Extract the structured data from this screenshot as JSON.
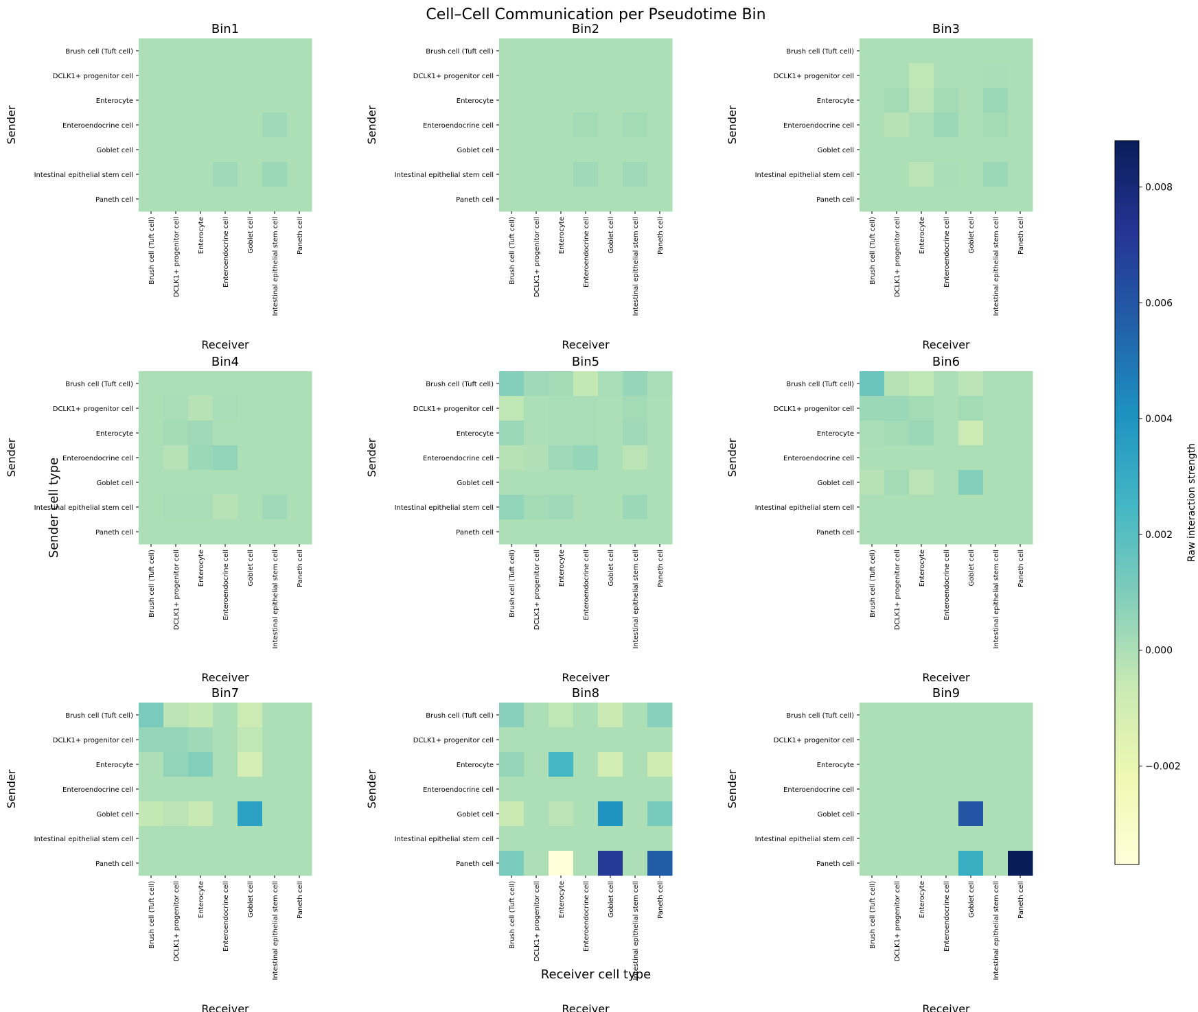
{
  "figure": {
    "title": "Cell–Cell Communication per Pseudotime Bin",
    "sup_xlabel": "Receiver cell type",
    "sup_ylabel": "Sender cell type"
  },
  "colorbar": {
    "label": "Raw interaction strength",
    "vmin": -0.0037,
    "vmax": 0.0088,
    "ticks": [
      -0.002,
      0.0,
      0.002,
      0.004,
      0.006,
      0.008
    ],
    "tick_labels": [
      "−0.002",
      "0.000",
      "0.002",
      "0.004",
      "0.006",
      "0.008"
    ],
    "colormap": "YlGnBu",
    "stops": [
      "#ffffd9",
      "#edf8b1",
      "#c7e9b4",
      "#7fcdbb",
      "#41b6c4",
      "#1d91c0",
      "#225ea8",
      "#253494",
      "#081d58"
    ]
  },
  "chart_data": {
    "type": "heatmap",
    "rows": [
      "Brush cell (Tuft cell)",
      "DCLK1+ progenitor cell",
      "Enterocyte",
      "Enteroendocrine cell",
      "Goblet cell",
      "Intestinal epithelial stem cell",
      "Paneth cell"
    ],
    "cols": [
      "Brush cell (Tuft cell)",
      "DCLK1+ progenitor cell",
      "Enterocyte",
      "Enteroendocrine cell",
      "Goblet cell",
      "Intestinal epithelial stem cell",
      "Paneth cell"
    ],
    "xlabel": "Receiver",
    "ylabel": "Sender",
    "panels": [
      {
        "title": "Bin1",
        "values": [
          [
            0,
            0,
            0,
            0,
            0,
            0,
            0
          ],
          [
            0,
            0,
            0,
            0,
            0,
            0,
            0
          ],
          [
            0,
            0,
            0,
            0,
            0,
            0,
            0
          ],
          [
            0,
            0,
            0,
            0,
            0,
            0.0003,
            0
          ],
          [
            0,
            0,
            0,
            0,
            0,
            0,
            0
          ],
          [
            0,
            0,
            0,
            0.0003,
            0,
            0.0004,
            0
          ],
          [
            0,
            0,
            0,
            0,
            0,
            0,
            0
          ]
        ]
      },
      {
        "title": "Bin2",
        "values": [
          [
            0,
            0,
            0,
            0,
            0,
            0,
            0
          ],
          [
            0,
            0,
            0,
            0,
            0,
            0,
            0
          ],
          [
            0,
            0,
            0,
            0,
            0,
            0,
            0
          ],
          [
            0,
            0,
            0,
            0.0002,
            0,
            0.0002,
            0
          ],
          [
            0,
            0,
            0,
            0,
            0,
            0,
            0
          ],
          [
            0,
            0,
            0,
            0.0003,
            0,
            0.0003,
            0
          ],
          [
            0,
            0,
            0,
            0,
            0,
            0,
            0
          ]
        ]
      },
      {
        "title": "Bin3",
        "values": [
          [
            0,
            0,
            0,
            0,
            0,
            0,
            0
          ],
          [
            0,
            0,
            -0.0004,
            0,
            0,
            0.0001,
            0
          ],
          [
            0,
            0.0002,
            -0.0003,
            0.0002,
            0,
            0.0004,
            0
          ],
          [
            0,
            -0.0002,
            0,
            0.0004,
            0,
            0.0002,
            0
          ],
          [
            0,
            0,
            0,
            0,
            0,
            0,
            0
          ],
          [
            0,
            0,
            -0.0003,
            0.0001,
            0,
            0.0004,
            0
          ],
          [
            0,
            0,
            0,
            0,
            0,
            0,
            0
          ]
        ]
      },
      {
        "title": "Bin4",
        "values": [
          [
            0,
            0,
            0,
            0,
            0,
            0,
            0
          ],
          [
            0,
            0.0001,
            -0.0002,
            0.0001,
            0,
            0,
            0
          ],
          [
            0,
            0.0002,
            0.0003,
            0,
            0,
            0,
            0
          ],
          [
            0,
            -0.0002,
            0.0004,
            0.0006,
            0,
            0,
            0
          ],
          [
            0,
            0,
            0,
            0,
            0,
            0,
            0
          ],
          [
            0,
            0.0001,
            0.0001,
            -0.0002,
            0,
            0.0003,
            0
          ],
          [
            0,
            0,
            0,
            0,
            0,
            0,
            0
          ]
        ]
      },
      {
        "title": "Bin5",
        "values": [
          [
            0.0009,
            0.0003,
            0.0002,
            -0.0005,
            0.0001,
            0.0005,
            0.0001
          ],
          [
            -0.0004,
            0,
            0.0001,
            0.0001,
            0,
            0.0002,
            0
          ],
          [
            0.0004,
            0,
            0.0001,
            0.0001,
            0,
            0.0003,
            0
          ],
          [
            -0.0002,
            -0.0001,
            0.0003,
            0.0005,
            0,
            -0.0003,
            0
          ],
          [
            0,
            0,
            0,
            0,
            0,
            0,
            0
          ],
          [
            0.0006,
            0.0002,
            0.0003,
            0,
            0,
            0.0004,
            0
          ],
          [
            0,
            0,
            0,
            0,
            0,
            0,
            0
          ]
        ]
      },
      {
        "title": "Bin6",
        "values": [
          [
            0.0015,
            -0.0002,
            -0.0004,
            0,
            -0.0003,
            0,
            0
          ],
          [
            0.0004,
            0.0004,
            0.0002,
            0,
            0.0002,
            0,
            0
          ],
          [
            0.0001,
            0.0002,
            0.0004,
            0,
            -0.0008,
            0,
            0
          ],
          [
            0,
            0,
            0,
            0,
            0,
            0,
            0
          ],
          [
            -0.0002,
            0.0002,
            -0.0003,
            0,
            0.0009,
            0,
            0
          ],
          [
            0,
            0,
            0,
            0,
            0,
            0,
            0
          ],
          [
            0,
            0,
            0,
            0,
            0,
            0,
            0
          ]
        ]
      },
      {
        "title": "Bin7",
        "values": [
          [
            0.0011,
            -0.0003,
            -0.0005,
            0,
            -0.0008,
            0,
            0
          ],
          [
            0.0005,
            0.0005,
            0.0003,
            0,
            -0.0004,
            0,
            0
          ],
          [
            0,
            0.0006,
            0.0009,
            0,
            -0.0011,
            0,
            0
          ],
          [
            0,
            0,
            0,
            0,
            0,
            0,
            0
          ],
          [
            -0.0005,
            -0.0003,
            -0.0006,
            0,
            0.0035,
            0,
            0
          ],
          [
            0,
            0,
            0,
            0,
            0,
            0,
            0
          ],
          [
            0,
            0,
            0,
            0,
            0,
            0,
            0
          ]
        ]
      },
      {
        "title": "Bin8",
        "values": [
          [
            0.0008,
            0,
            -0.0004,
            0,
            -0.0007,
            0,
            0.0008
          ],
          [
            0,
            0,
            0,
            0,
            0,
            0,
            0
          ],
          [
            0.0005,
            0,
            0.0025,
            0,
            -0.001,
            0,
            -0.0009
          ],
          [
            0,
            0,
            0,
            0,
            0,
            0,
            0
          ],
          [
            -0.0007,
            0,
            -0.0003,
            0,
            0.004,
            0,
            0.0012
          ],
          [
            0,
            0,
            0,
            0,
            0,
            0,
            0
          ],
          [
            0.0011,
            0,
            -0.0037,
            0,
            0.007,
            0,
            0.0058
          ]
        ]
      },
      {
        "title": "Bin9",
        "values": [
          [
            0,
            0,
            0,
            0,
            0,
            0,
            0
          ],
          [
            0,
            0,
            0,
            0,
            0,
            0,
            0
          ],
          [
            0,
            0,
            0,
            0,
            0,
            0,
            0
          ],
          [
            0,
            0,
            0,
            0,
            0,
            0,
            0
          ],
          [
            0,
            0,
            0,
            0,
            0.006,
            0,
            0
          ],
          [
            0,
            0,
            0,
            0,
            0,
            0,
            0
          ],
          [
            0,
            0,
            0,
            0,
            0.0029,
            0,
            0.0088
          ]
        ]
      }
    ]
  }
}
